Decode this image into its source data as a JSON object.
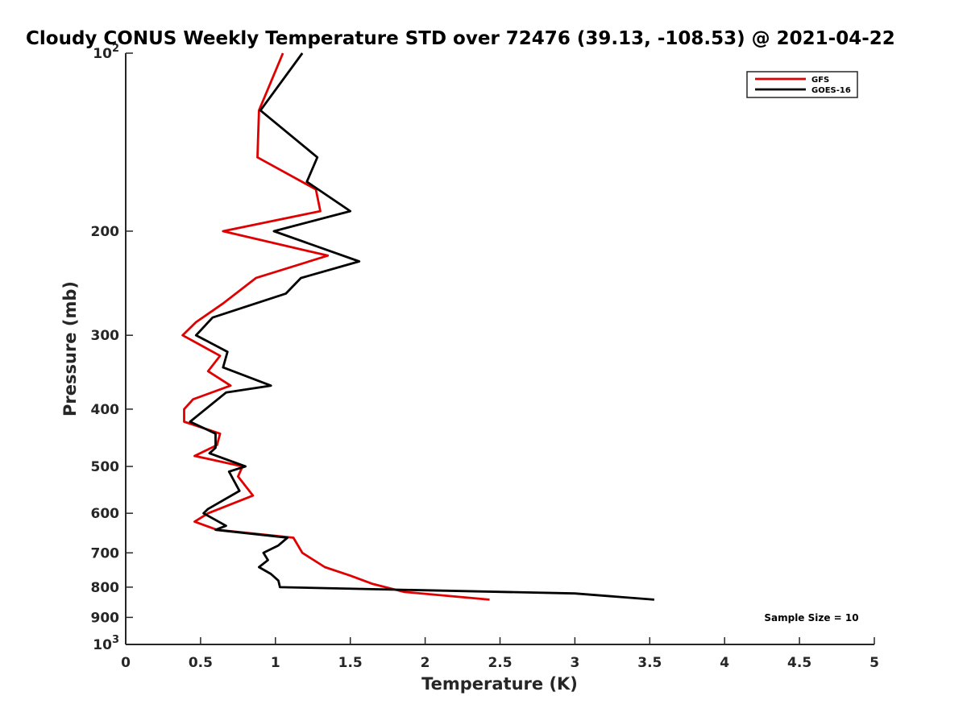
{
  "chart_data": {
    "type": "line",
    "title": "Cloudy CONUS Weekly Temperature STD over 72476 (39.13, -108.53) @ 2021-04-22",
    "xlabel": "Temperature (K)",
    "ylabel": "Pressure (mb)",
    "xlim": [
      0,
      5
    ],
    "ylim": [
      100,
      1000
    ],
    "y_scale": "log",
    "y_reversed": true,
    "xticks": [
      0,
      0.5,
      1,
      1.5,
      2,
      2.5,
      3,
      3.5,
      4,
      4.5,
      5
    ],
    "xtick_labels": [
      "0",
      "0.5",
      "1",
      "1.5",
      "2",
      "2.5",
      "3",
      "3.5",
      "4",
      "4.5",
      "5"
    ],
    "yticks": [
      100,
      200,
      300,
      400,
      500,
      600,
      700,
      800,
      900,
      1000
    ],
    "ytick_labels": [
      {
        "base": "10",
        "exp": "2"
      },
      {
        "base": "200",
        "exp": ""
      },
      {
        "base": "300",
        "exp": ""
      },
      {
        "base": "400",
        "exp": ""
      },
      {
        "base": "500",
        "exp": ""
      },
      {
        "base": "600",
        "exp": ""
      },
      {
        "base": "700",
        "exp": ""
      },
      {
        "base": "800",
        "exp": ""
      },
      {
        "base": "900",
        "exp": ""
      },
      {
        "base": "10",
        "exp": "3"
      }
    ],
    "grid": false,
    "legend_position": "top-right",
    "series": [
      {
        "name": "GFS",
        "color": "#e00000",
        "points": [
          [
            1.05,
            100
          ],
          [
            0.89,
            125
          ],
          [
            0.88,
            150
          ],
          [
            1.27,
            170
          ],
          [
            1.3,
            185
          ],
          [
            0.65,
            200
          ],
          [
            1.35,
            220
          ],
          [
            0.87,
            240
          ],
          [
            0.65,
            265
          ],
          [
            0.47,
            285
          ],
          [
            0.38,
            300
          ],
          [
            0.63,
            325
          ],
          [
            0.55,
            345
          ],
          [
            0.7,
            365
          ],
          [
            0.45,
            385
          ],
          [
            0.39,
            400
          ],
          [
            0.39,
            420
          ],
          [
            0.63,
            440
          ],
          [
            0.61,
            460
          ],
          [
            0.46,
            480
          ],
          [
            0.78,
            500
          ],
          [
            0.75,
            520
          ],
          [
            0.85,
            560
          ],
          [
            0.55,
            600
          ],
          [
            0.46,
            620
          ],
          [
            0.61,
            640
          ],
          [
            1.12,
            660
          ],
          [
            1.18,
            700
          ],
          [
            1.33,
            740
          ],
          [
            1.5,
            765
          ],
          [
            1.65,
            790
          ],
          [
            1.86,
            815
          ],
          [
            2.43,
            840
          ]
        ]
      },
      {
        "name": "GOES-16",
        "color": "#000000",
        "points": [
          [
            1.18,
            100
          ],
          [
            0.9,
            125
          ],
          [
            1.28,
            150
          ],
          [
            1.21,
            165
          ],
          [
            1.5,
            185
          ],
          [
            0.99,
            200
          ],
          [
            1.56,
            225
          ],
          [
            1.17,
            240
          ],
          [
            1.07,
            255
          ],
          [
            0.58,
            280
          ],
          [
            0.47,
            300
          ],
          [
            0.68,
            320
          ],
          [
            0.65,
            340
          ],
          [
            0.97,
            365
          ],
          [
            0.67,
            375
          ],
          [
            0.43,
            420
          ],
          [
            0.6,
            440
          ],
          [
            0.6,
            465
          ],
          [
            0.56,
            475
          ],
          [
            0.8,
            500
          ],
          [
            0.69,
            510
          ],
          [
            0.76,
            550
          ],
          [
            0.55,
            590
          ],
          [
            0.52,
            600
          ],
          [
            0.67,
            630
          ],
          [
            0.6,
            640
          ],
          [
            1.08,
            660
          ],
          [
            1.02,
            680
          ],
          [
            0.92,
            700
          ],
          [
            0.95,
            720
          ],
          [
            0.89,
            740
          ],
          [
            0.97,
            760
          ],
          [
            1.02,
            780
          ],
          [
            1.03,
            800
          ],
          [
            3.0,
            820
          ],
          [
            3.53,
            840
          ]
        ]
      }
    ],
    "legend": [
      {
        "label": "GFS",
        "color": "#e00000"
      },
      {
        "label": "GOES-16",
        "color": "#000000"
      }
    ],
    "annotations": {
      "sample_size": "Sample Size = 10"
    }
  }
}
